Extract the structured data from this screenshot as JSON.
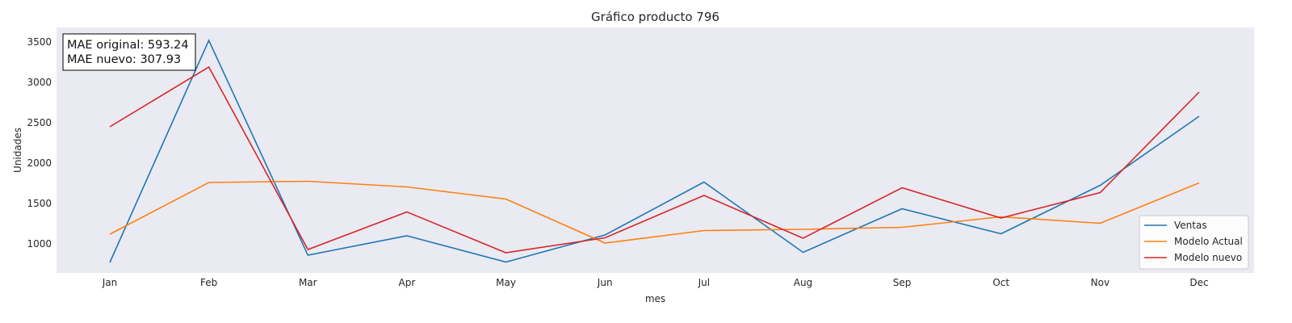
{
  "chart_data": {
    "type": "line",
    "title": "Gráfico producto 796",
    "xlabel": "mes",
    "ylabel": "Unidades",
    "categories": [
      "Jan",
      "Feb",
      "Mar",
      "Apr",
      "May",
      "Jun",
      "Jul",
      "Aug",
      "Sep",
      "Oct",
      "Nov",
      "Dec"
    ],
    "ylim": [
      640,
      3680
    ],
    "yticks": [
      1000,
      1500,
      2000,
      2500,
      3000,
      3500
    ],
    "grid": false,
    "legend_position": "lower-right",
    "background_color": "#eaeaf2",
    "series": [
      {
        "name": "Ventas",
        "color": "#1f77b4",
        "values": [
          770,
          3520,
          860,
          1100,
          775,
          1110,
          1765,
          895,
          1435,
          1125,
          1725,
          2580
        ]
      },
      {
        "name": "Modelo Actual",
        "color": "#ff7f0e",
        "values": [
          1120,
          1760,
          1775,
          1705,
          1555,
          1010,
          1165,
          1180,
          1205,
          1335,
          1255,
          1755
        ]
      },
      {
        "name": "Modelo nuevo",
        "color": "#d62728",
        "values": [
          2450,
          3190,
          930,
          1395,
          890,
          1075,
          1600,
          1070,
          1695,
          1320,
          1635,
          2880
        ]
      }
    ],
    "annotation": {
      "lines": [
        "MAE original: 593.24",
        "MAE nuevo: 307.93"
      ]
    }
  }
}
